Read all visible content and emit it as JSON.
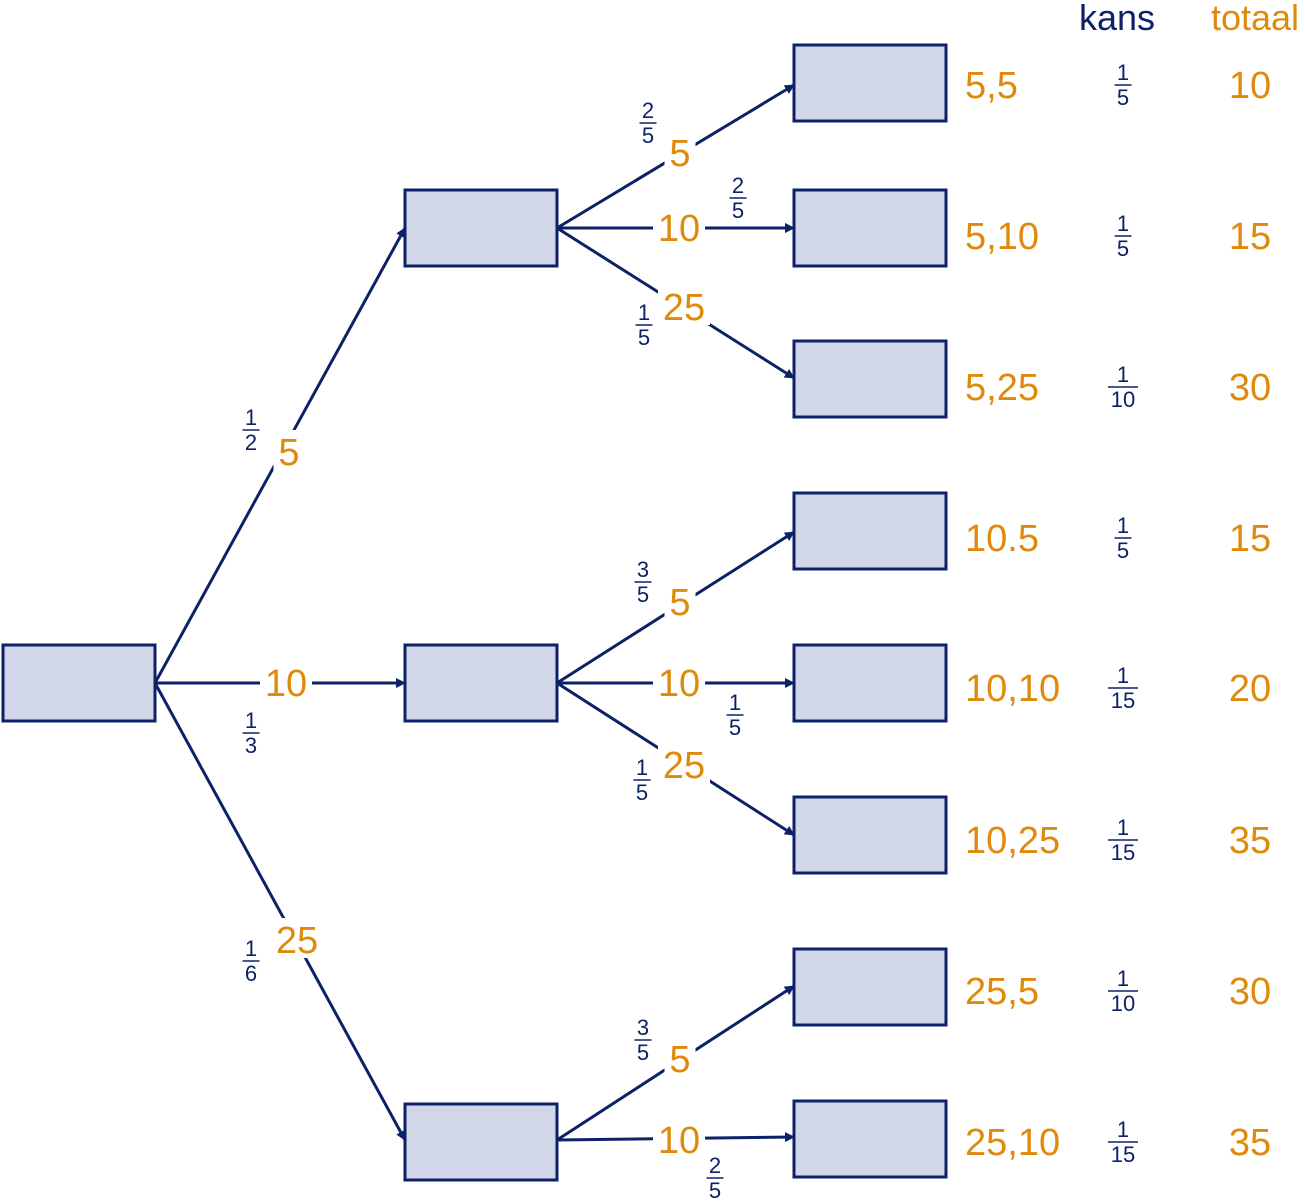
{
  "colors": {
    "navy": "#0d2168",
    "orange": "#e08a0c",
    "box_fill": "#d1d6e8"
  },
  "headers": {
    "kans": "kans",
    "totaal": "totaal"
  },
  "first_level": [
    {
      "value": "5",
      "prob": {
        "num": "1",
        "den": "2"
      }
    },
    {
      "value": "10",
      "prob": {
        "num": "1",
        "den": "3"
      }
    },
    {
      "value": "25",
      "prob": {
        "num": "1",
        "den": "6"
      }
    }
  ],
  "second_level": [
    [
      {
        "value": "5",
        "prob": {
          "num": "2",
          "den": "5"
        }
      },
      {
        "value": "10",
        "prob": {
          "num": "2",
          "den": "5"
        }
      },
      {
        "value": "25",
        "prob": {
          "num": "1",
          "den": "5"
        }
      }
    ],
    [
      {
        "value": "5",
        "prob": {
          "num": "3",
          "den": "5"
        }
      },
      {
        "value": "10",
        "prob": {
          "num": "1",
          "den": "5"
        }
      },
      {
        "value": "25",
        "prob": {
          "num": "1",
          "den": "5"
        }
      }
    ],
    [
      {
        "value": "5",
        "prob": {
          "num": "3",
          "den": "5"
        }
      },
      {
        "value": "10",
        "prob": {
          "num": "2",
          "den": "5"
        }
      }
    ]
  ],
  "outcomes": [
    {
      "label": "5,5",
      "kans": {
        "num": "1",
        "den": "5"
      },
      "totaal": "10"
    },
    {
      "label": "5,10",
      "kans": {
        "num": "1",
        "den": "5"
      },
      "totaal": "15"
    },
    {
      "label": "5,25",
      "kans": {
        "num": "1",
        "den": "10"
      },
      "totaal": "30"
    },
    {
      "label": "10.5",
      "kans": {
        "num": "1",
        "den": "5"
      },
      "totaal": "15"
    },
    {
      "label": "10,10",
      "kans": {
        "num": "1",
        "den": "15"
      },
      "totaal": "20"
    },
    {
      "label": "10,25",
      "kans": {
        "num": "1",
        "den": "15"
      },
      "totaal": "35"
    },
    {
      "label": "25,5",
      "kans": {
        "num": "1",
        "den": "10"
      },
      "totaal": "30"
    },
    {
      "label": "25,10",
      "kans": {
        "num": "1",
        "den": "15"
      },
      "totaal": "35"
    }
  ]
}
